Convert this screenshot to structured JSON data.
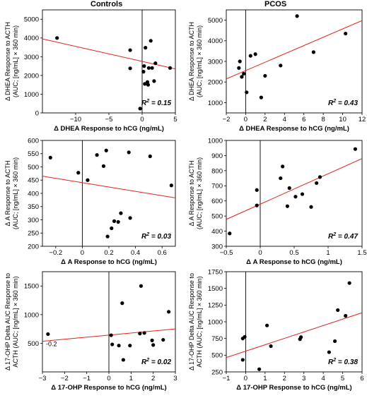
{
  "headers": {
    "left": "Controls",
    "right": "PCOS"
  },
  "chart_data": [
    {
      "type": "scatter",
      "group": "Controls",
      "xlabel": "Δ DHEA Response to hCG (ng/mL)",
      "ylabel": [
        "Δ DHEA Response to ACTH",
        "(AUC; [ng/mL] × 360 min)"
      ],
      "xlim": [
        -15,
        5
      ],
      "ylim": [
        0,
        5500
      ],
      "xticks": [
        -10,
        -5,
        0,
        5
      ],
      "yticks": [
        0,
        1000,
        2000,
        3000,
        4000,
        5000
      ],
      "r2_label": "R",
      "r2_value": "= 0.15",
      "annotation": "",
      "points": [
        {
          "x": -12.8,
          "y": 4000
        },
        {
          "x": -1.8,
          "y": 3350
        },
        {
          "x": -1.8,
          "y": 2380
        },
        {
          "x": -0.3,
          "y": 230
        },
        {
          "x": 0.2,
          "y": 2200
        },
        {
          "x": 0.3,
          "y": 2500
        },
        {
          "x": 0.4,
          "y": 1550
        },
        {
          "x": 0.5,
          "y": 3480
        },
        {
          "x": 0.8,
          "y": 1650
        },
        {
          "x": 0.9,
          "y": 1500
        },
        {
          "x": 1.0,
          "y": 2400
        },
        {
          "x": 1.3,
          "y": 3850
        },
        {
          "x": 1.5,
          "y": 2400
        },
        {
          "x": 1.8,
          "y": 1700
        },
        {
          "x": 2.0,
          "y": 2650
        },
        {
          "x": 4.2,
          "y": 2400
        }
      ],
      "fit": {
        "x1": -15,
        "y1": 3950,
        "x2": 5,
        "y2": 2350
      }
    },
    {
      "type": "scatter",
      "group": "PCOS",
      "xlabel": "Δ DHEA Response to hCG (ng/mL)",
      "ylabel": [
        "Δ DHEA Response to ACTH",
        "(AUC; [ng/mL] × 360 min)"
      ],
      "xlim": [
        -2,
        12
      ],
      "ylim": [
        500,
        5500
      ],
      "xticks": [
        -2,
        0,
        2,
        4,
        6,
        8,
        10,
        12
      ],
      "yticks": [
        1000,
        2000,
        3000,
        4000,
        5000
      ],
      "r2_label": "R",
      "r2_value": "= 0.43",
      "annotation": "",
      "points": [
        {
          "x": -0.7,
          "y": 2680
        },
        {
          "x": -0.6,
          "y": 3000
        },
        {
          "x": -0.4,
          "y": 2250
        },
        {
          "x": -0.2,
          "y": 2400
        },
        {
          "x": 0.1,
          "y": 1500
        },
        {
          "x": 0.5,
          "y": 3270
        },
        {
          "x": 1.0,
          "y": 3350
        },
        {
          "x": 1.6,
          "y": 1250
        },
        {
          "x": 2.0,
          "y": 2300
        },
        {
          "x": 3.6,
          "y": 2800
        },
        {
          "x": 5.3,
          "y": 5200
        },
        {
          "x": 7.0,
          "y": 3450
        },
        {
          "x": 10.3,
          "y": 4350
        }
      ],
      "fit": {
        "x1": -2,
        "y1": 2150,
        "x2": 12,
        "y2": 4980
      }
    },
    {
      "type": "scatter",
      "group": "Controls",
      "xlabel": "Δ A Response to hCG (ng/mL)",
      "ylabel": [
        "Δ A Response to ACTH",
        "(AUC; [ng/mL] × 360 min)"
      ],
      "xlim": [
        -0.3,
        0.7
      ],
      "ylim": [
        200,
        600
      ],
      "xticks": [
        -0.2,
        0,
        0.2,
        0.4,
        0.6
      ],
      "yticks": [
        200,
        250,
        300,
        350,
        400,
        450,
        500,
        550,
        600
      ],
      "r2_label": "R",
      "r2_value": "= 0.03",
      "annotation": "",
      "points": [
        {
          "x": -0.24,
          "y": 535
        },
        {
          "x": -0.03,
          "y": 478
        },
        {
          "x": 0.04,
          "y": 450
        },
        {
          "x": 0.11,
          "y": 545
        },
        {
          "x": 0.16,
          "y": 503
        },
        {
          "x": 0.18,
          "y": 562
        },
        {
          "x": 0.19,
          "y": 237
        },
        {
          "x": 0.22,
          "y": 268
        },
        {
          "x": 0.24,
          "y": 295
        },
        {
          "x": 0.27,
          "y": 292
        },
        {
          "x": 0.29,
          "y": 325
        },
        {
          "x": 0.35,
          "y": 555
        },
        {
          "x": 0.36,
          "y": 307
        },
        {
          "x": 0.51,
          "y": 540
        },
        {
          "x": 0.67,
          "y": 430
        }
      ],
      "fit": {
        "x1": -0.3,
        "y1": 465,
        "x2": 0.7,
        "y2": 383
      }
    },
    {
      "type": "scatter",
      "group": "PCOS",
      "xlabel": "Δ A Response to hCG (ng/mL)",
      "ylabel": [
        "Δ A Response to ACTH",
        "(AUC; [ng/mL] × 360 min)"
      ],
      "xlim": [
        -0.5,
        1.5
      ],
      "ylim": [
        300,
        1000
      ],
      "xticks": [
        -0.5,
        0,
        0.5,
        1.0,
        1.5
      ],
      "yticks": [
        300,
        400,
        500,
        600,
        700,
        800,
        900,
        1000
      ],
      "r2_label": "R",
      "r2_value": "= 0.47",
      "annotation": "",
      "points": [
        {
          "x": -0.45,
          "y": 385
        },
        {
          "x": -0.05,
          "y": 570
        },
        {
          "x": -0.05,
          "y": 672
        },
        {
          "x": 0.3,
          "y": 750
        },
        {
          "x": 0.33,
          "y": 828
        },
        {
          "x": 0.4,
          "y": 565
        },
        {
          "x": 0.43,
          "y": 685
        },
        {
          "x": 0.52,
          "y": 628
        },
        {
          "x": 0.62,
          "y": 645
        },
        {
          "x": 0.75,
          "y": 560
        },
        {
          "x": 0.83,
          "y": 718
        },
        {
          "x": 0.88,
          "y": 758
        },
        {
          "x": 1.4,
          "y": 943
        }
      ],
      "fit": {
        "x1": -0.5,
        "y1": 478,
        "x2": 1.5,
        "y2": 880
      }
    },
    {
      "type": "scatter",
      "group": "Controls",
      "xlabel": "Δ 17-OHP Response to hCG (ng/mL)",
      "ylabel": [
        "Δ 17-OHP Delta AUC Response to",
        "ACTH (AUC; [ng/mL] × 360 min)"
      ],
      "xlim": [
        -3,
        3
      ],
      "ylim": [
        0,
        1750
      ],
      "xticks": [
        -3,
        -2,
        -1,
        0,
        1,
        2,
        3
      ],
      "yticks": [
        500,
        1000,
        1500
      ],
      "r2_label": "R",
      "r2_value": "= 0.02",
      "annotation": "-0.2",
      "points": [
        {
          "x": -2.75,
          "y": 660
        },
        {
          "x": 0.1,
          "y": 640
        },
        {
          "x": 0.15,
          "y": 480
        },
        {
          "x": 0.45,
          "y": 460
        },
        {
          "x": 0.6,
          "y": 1200
        },
        {
          "x": 0.65,
          "y": 210
        },
        {
          "x": 0.95,
          "y": 460
        },
        {
          "x": 1.4,
          "y": 670
        },
        {
          "x": 1.45,
          "y": 1500
        },
        {
          "x": 1.6,
          "y": 680
        },
        {
          "x": 1.95,
          "y": 550
        },
        {
          "x": 2.0,
          "y": 470
        },
        {
          "x": 2.45,
          "y": 560
        },
        {
          "x": 2.7,
          "y": 1050
        }
      ],
      "fit": {
        "x1": -3,
        "y1": 535,
        "x2": 3,
        "y2": 750
      }
    },
    {
      "type": "scatter",
      "group": "PCOS",
      "xlabel": "Δ 17-OHP Response to hCG (ng/mL)",
      "ylabel": [
        "Δ 17-OHP Delta AUC Response to",
        "ACTH (AUC; [ng/mL] × 360 min)"
      ],
      "xlim": [
        -1,
        6
      ],
      "ylim": [
        250,
        1750
      ],
      "xticks": [
        -1,
        0,
        1,
        2,
        3,
        4,
        5,
        6
      ],
      "yticks": [
        250,
        500,
        750,
        1000,
        1250,
        1500,
        1750
      ],
      "r2_label": "R",
      "r2_value": "= 0.38",
      "annotation": "",
      "points": [
        {
          "x": -0.15,
          "y": 430
        },
        {
          "x": -0.15,
          "y": 750
        },
        {
          "x": -0.05,
          "y": 775
        },
        {
          "x": 0.7,
          "y": 290
        },
        {
          "x": 1.1,
          "y": 945
        },
        {
          "x": 1.3,
          "y": 635
        },
        {
          "x": 2.8,
          "y": 740
        },
        {
          "x": 2.85,
          "y": 770
        },
        {
          "x": 4.3,
          "y": 545
        },
        {
          "x": 4.6,
          "y": 710
        },
        {
          "x": 4.75,
          "y": 1175
        },
        {
          "x": 5.15,
          "y": 1090
        },
        {
          "x": 5.35,
          "y": 1580
        }
      ],
      "fit": {
        "x1": -1,
        "y1": 465,
        "x2": 6,
        "y2": 1135
      }
    }
  ]
}
